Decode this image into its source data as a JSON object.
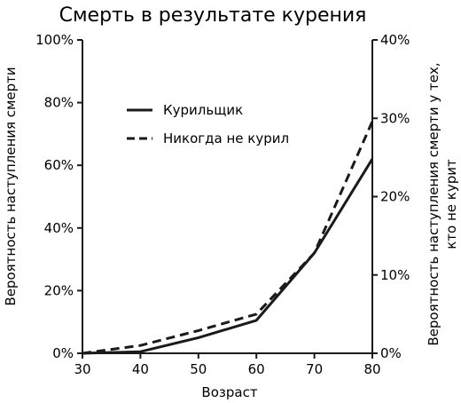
{
  "chart_data": {
    "type": "line",
    "title": "Смерть в результате курения",
    "xlabel": "Возраст",
    "ylabel_left": "Вероятность наступления смерти",
    "ylabel_right_line1": "Вероятность наступления смерти у тех,",
    "ylabel_right_line2": "кто не курит",
    "xlim": [
      30,
      80
    ],
    "ylim_left": [
      0,
      100
    ],
    "ylim_right": [
      0,
      40
    ],
    "x_ticks": [
      "30",
      "40",
      "50",
      "60",
      "70",
      "80"
    ],
    "y_left_ticks": [
      "0%",
      "20%",
      "40%",
      "60%",
      "80%",
      "100%"
    ],
    "y_right_ticks": [
      "0%",
      "10%",
      "20%",
      "30%",
      "40%"
    ],
    "legend_position": "upper-left",
    "series": [
      {
        "name": "Курильщик",
        "style": "solid",
        "axis": "left",
        "x": [
          30,
          40,
          50,
          60,
          70,
          80
        ],
        "y": [
          0,
          0.5,
          5,
          10.5,
          32,
          62
        ]
      },
      {
        "name": "Никогда не курил",
        "style": "dashed",
        "axis": "right",
        "x": [
          30,
          40,
          50,
          60,
          70,
          80
        ],
        "y": [
          0,
          1.0,
          2.9,
          5.0,
          12.8,
          29.6
        ]
      }
    ],
    "colors": {
      "line": "#1a1a1a"
    }
  }
}
